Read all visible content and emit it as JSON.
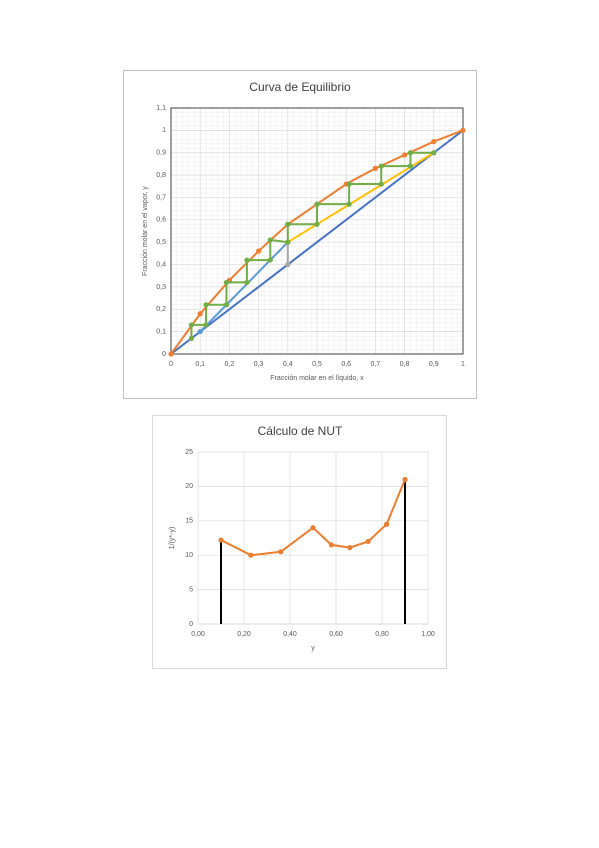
{
  "chart_data": [
    {
      "type": "line",
      "title": "Curva de Equilibrio",
      "x_label": "Fracción molar en el líquido, x",
      "y_label": "Fracción molar en el vapor, y",
      "xlim": [
        0,
        1
      ],
      "ylim": [
        0,
        1.1
      ],
      "xticks": [
        0,
        {
          "value": 0.1,
          "label": "0,1"
        },
        {
          "value": 0.2,
          "label": "0,2"
        },
        {
          "value": 0.3,
          "label": "0,3"
        },
        {
          "value": 0.4,
          "label": "0,4"
        },
        {
          "value": 0.5,
          "label": "0,5"
        },
        {
          "value": 0.6,
          "label": "0,6"
        },
        {
          "value": 0.7,
          "label": "0,7"
        },
        {
          "value": 0.8,
          "label": "0,8"
        },
        {
          "value": 0.9,
          "label": "0,9"
        },
        1
      ],
      "yticks": [
        0,
        {
          "value": 0.1,
          "label": "0,1"
        },
        {
          "value": 0.2,
          "label": "0,2"
        },
        {
          "value": 0.3,
          "label": "0,3"
        },
        {
          "value": 0.4,
          "label": "0,4"
        },
        {
          "value": 0.5,
          "label": "0,5"
        },
        {
          "value": 0.6,
          "label": "0,6"
        },
        {
          "value": 0.7,
          "label": "0,7"
        },
        {
          "value": 0.8,
          "label": "0,8"
        },
        {
          "value": 0.9,
          "label": "0,9"
        },
        1,
        {
          "value": 1.1,
          "label": "1,1"
        }
      ],
      "grid": true,
      "minor_grid": true,
      "series": [
        {
          "color": "#4472c4",
          "markers": false,
          "x": [
            0,
            1
          ],
          "values": [
            0,
            1
          ]
        },
        {
          "color": "#ffc000",
          "markers": false,
          "x": [
            0.4,
            0.9
          ],
          "values": [
            0.5,
            0.9
          ]
        },
        {
          "color": "#5b9bd5",
          "markers": true,
          "x": [
            0.1,
            0.4
          ],
          "values": [
            0.1,
            0.5
          ]
        },
        {
          "color": "#a5a5a5",
          "markers": true,
          "x": [
            0.4,
            0.4
          ],
          "values": [
            0.4,
            0.5
          ]
        },
        {
          "color": "#ed7d31",
          "markers": true,
          "x": [
            0,
            0.1,
            0.2,
            0.3,
            0.4,
            0.5,
            0.6,
            0.7,
            0.8,
            0.9,
            1
          ],
          "values": [
            0,
            0.18,
            0.33,
            0.46,
            0.58,
            0.67,
            0.76,
            0.83,
            0.89,
            0.95,
            1
          ]
        },
        {
          "color": "#70ad47",
          "markers": true,
          "x": [
            0.9,
            0.82,
            0.82,
            0.72,
            0.72,
            0.61,
            0.61,
            0.5,
            0.5,
            0.4,
            0.4,
            0.34,
            0.34,
            0.26,
            0.26,
            0.19,
            0.19,
            0.12,
            0.12,
            0.07,
            0.07
          ],
          "values": [
            0.9,
            0.9,
            0.84,
            0.84,
            0.76,
            0.76,
            0.67,
            0.67,
            0.58,
            0.58,
            0.5,
            0.51,
            0.42,
            0.42,
            0.32,
            0.32,
            0.22,
            0.22,
            0.13,
            0.13,
            0.07
          ]
        }
      ]
    },
    {
      "type": "line",
      "title": "Cálculo de NUT",
      "x_label": "y",
      "y_label": "1/(y*-y)",
      "xlim": [
        0,
        1
      ],
      "ylim": [
        0,
        25
      ],
      "xticks": [
        {
          "value": 0,
          "label": "0,00"
        },
        {
          "value": 0.2,
          "label": "0,20"
        },
        {
          "value": 0.4,
          "label": "0,40"
        },
        {
          "value": 0.6,
          "label": "0,60"
        },
        {
          "value": 0.8,
          "label": "0,80"
        },
        {
          "value": 1,
          "label": "1,00"
        }
      ],
      "yticks": [
        0,
        5,
        10,
        15,
        20,
        25
      ],
      "grid": true,
      "minor_grid": false,
      "series": [
        {
          "color": "#000000",
          "markers": false,
          "x": [
            0.1,
            0.1
          ],
          "values": [
            0,
            12.2
          ]
        },
        {
          "color": "#000000",
          "markers": false,
          "x": [
            0.9,
            0.9
          ],
          "values": [
            0,
            21
          ]
        },
        {
          "color": "#ed7d31",
          "markers": true,
          "x": [
            0.1,
            0.23,
            0.36,
            0.5,
            0.58,
            0.66,
            0.74,
            0.82,
            0.9
          ],
          "values": [
            12.2,
            10,
            10.5,
            14,
            11.5,
            11.1,
            12,
            14.5,
            21
          ]
        }
      ]
    }
  ]
}
